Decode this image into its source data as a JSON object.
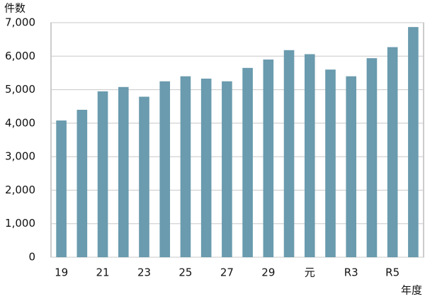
{
  "chart_data": {
    "type": "bar",
    "y_axis_label": "件数",
    "x_axis_label": "年度",
    "categories": [
      "19",
      null,
      "21",
      null,
      "23",
      null,
      "25",
      null,
      "27",
      null,
      "29",
      null,
      "元",
      null,
      "R3",
      null,
      "R5",
      null
    ],
    "values": [
      4080,
      4400,
      4950,
      5080,
      4790,
      5250,
      5400,
      5330,
      5250,
      5650,
      5900,
      6180,
      6060,
      5600,
      5400,
      5940,
      6270,
      6870
    ],
    "color": "#6a9bae",
    "ylim": [
      0,
      7000
    ],
    "yticks": [
      0,
      {
        "value": 1000,
        "label": "1,000"
      },
      {
        "value": 2000,
        "label": "2,000"
      },
      {
        "value": 3000,
        "label": "3,000"
      },
      {
        "value": 4000,
        "label": "4,000"
      },
      {
        "value": 5000,
        "label": "5,000"
      },
      {
        "value": 6000,
        "label": "6,000"
      },
      {
        "value": 7000,
        "label": "7,000"
      }
    ],
    "grid": true
  }
}
